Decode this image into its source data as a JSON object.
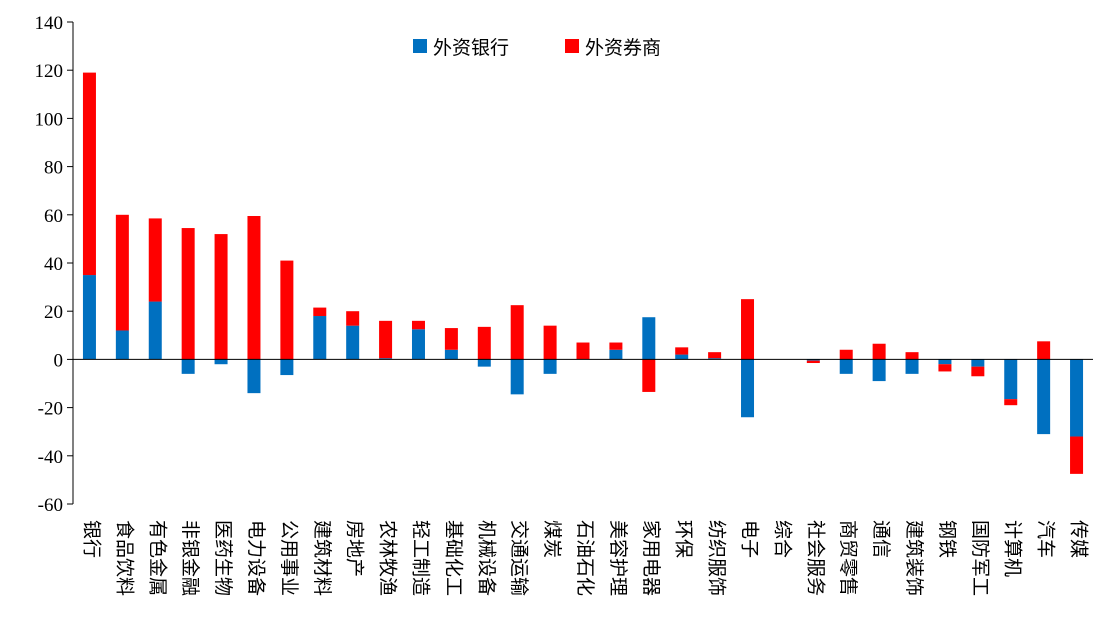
{
  "chart_data": {
    "type": "bar",
    "stacked": true,
    "title": "",
    "xlabel": "",
    "ylabel": "",
    "ylim": [
      -60,
      140
    ],
    "yticks": [
      -60,
      -40,
      -20,
      0,
      20,
      40,
      60,
      80,
      100,
      120,
      140
    ],
    "grid": false,
    "legend_position": "top-center",
    "categories": [
      "银行",
      "食品饮料",
      "有色金属",
      "非银金融",
      "医药生物",
      "电力设备",
      "公用事业",
      "建筑材料",
      "房地产",
      "农林牧渔",
      "轻工制造",
      "基础化工",
      "机械设备",
      "交通运输",
      "煤炭",
      "石油石化",
      "美容护理",
      "家用电器",
      "环保",
      "纺织服饰",
      "电子",
      "综合",
      "社会服务",
      "商贸零售",
      "通信",
      "建筑装饰",
      "钢铁",
      "国防军工",
      "计算机",
      "汽车",
      "传媒"
    ],
    "series": [
      {
        "name": "外资银行",
        "color": "#0070C0",
        "values": [
          35,
          12,
          24,
          -6,
          -2,
          -14,
          -6.5,
          18,
          14,
          0.5,
          12.5,
          4,
          -3,
          -14.5,
          -6,
          0,
          4,
          17.5,
          2,
          0.5,
          -24,
          0,
          -0.5,
          -6,
          -9,
          -6,
          -2,
          -3,
          -16.5,
          -31,
          -32
        ]
      },
      {
        "name": "外资券商",
        "color": "#FF0000",
        "values": [
          84,
          48,
          34.5,
          54.5,
          52,
          59.5,
          41,
          3.5,
          6,
          15.5,
          3.5,
          9,
          13.5,
          22.5,
          14,
          7,
          3,
          -13.5,
          3,
          2.5,
          25,
          0,
          -1,
          4,
          6.5,
          3,
          -3,
          -4,
          -2.5,
          7.5,
          -15.5
        ]
      }
    ]
  }
}
